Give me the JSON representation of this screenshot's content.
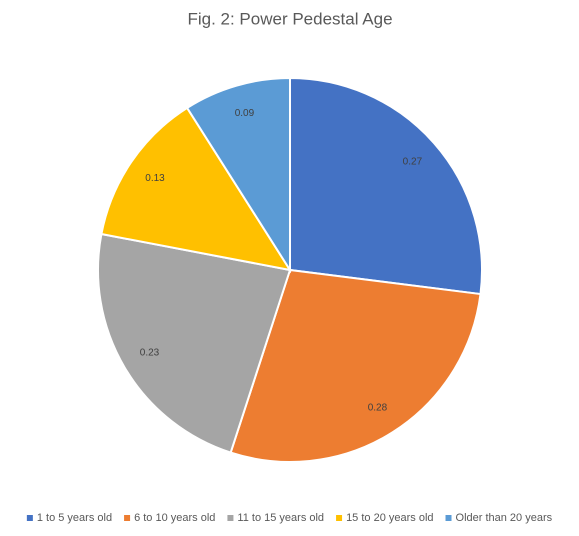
{
  "chart_data": {
    "type": "pie",
    "title": "Fig. 2: Power Pedestal Age",
    "categories": [
      "1 to 5 years old",
      "6 to 10 years old",
      "11 to 15 years old",
      "15 to 20 years old",
      "Older than 20 years"
    ],
    "values": [
      0.27,
      0.28,
      0.23,
      0.13,
      0.09
    ],
    "colors": [
      "#4472c4",
      "#ed7d31",
      "#a5a5a5",
      "#ffc000",
      "#5b9bd5"
    ],
    "legend": "bottom"
  }
}
